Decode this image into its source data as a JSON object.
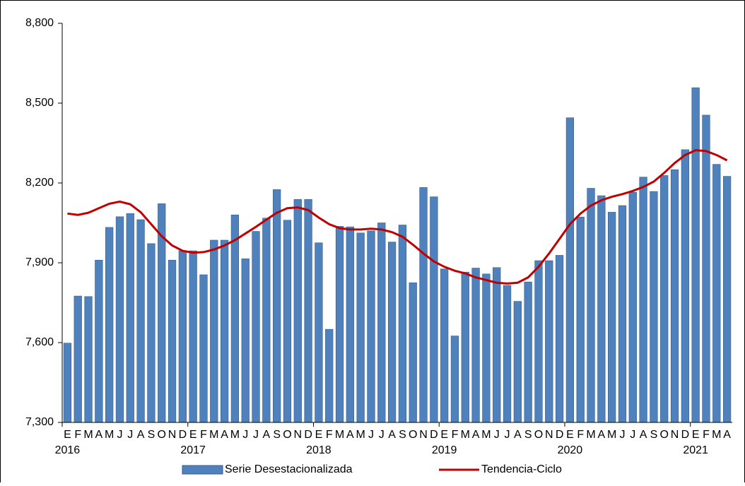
{
  "chart_data": {
    "type": "bar-line",
    "categories": [
      "E",
      "F",
      "M",
      "A",
      "M",
      "J",
      "J",
      "A",
      "S",
      "O",
      "N",
      "D",
      "E",
      "F",
      "M",
      "A",
      "M",
      "J",
      "J",
      "A",
      "S",
      "O",
      "N",
      "D",
      "E",
      "F",
      "M",
      "A",
      "M",
      "J",
      "J",
      "A",
      "S",
      "O",
      "N",
      "D",
      "E",
      "F",
      "M",
      "A",
      "M",
      "J",
      "J",
      "A",
      "S",
      "O",
      "N",
      "D",
      "E",
      "F",
      "M",
      "A",
      "M",
      "J",
      "J",
      "A",
      "S",
      "O",
      "N",
      "D",
      "E",
      "F",
      "M",
      "A"
    ],
    "years": [
      "2016",
      "2017",
      "2018",
      "2019",
      "2020",
      "2021"
    ],
    "series": [
      {
        "name": "Serie Desestacionalizada",
        "type": "bar",
        "color": "#4f81bd",
        "values": [
          7598,
          7775,
          7773,
          7910,
          8033,
          8073,
          8085,
          8062,
          7972,
          8122,
          7910,
          7945,
          7945,
          7855,
          7985,
          7985,
          8080,
          7915,
          8018,
          8068,
          8175,
          8060,
          8138,
          8138,
          7975,
          7650,
          8037,
          8035,
          8012,
          8020,
          8050,
          7978,
          8042,
          7825,
          8183,
          8148,
          7877,
          7625,
          7865,
          7880,
          7858,
          7882,
          7815,
          7755,
          7828,
          7908,
          7908,
          7928,
          8445,
          8072,
          8180,
          8152,
          8090,
          8115,
          8165,
          8222,
          8168,
          8228,
          8250,
          8325,
          8558,
          8455,
          8270,
          8225
        ]
      },
      {
        "name": "Tendencia-Ciclo",
        "type": "line",
        "color": "#c00000",
        "values": [
          8085,
          8080,
          8088,
          8105,
          8122,
          8130,
          8120,
          8090,
          8045,
          8000,
          7965,
          7945,
          7938,
          7940,
          7950,
          7965,
          7985,
          8010,
          8035,
          8062,
          8088,
          8105,
          8108,
          8098,
          8070,
          8045,
          8030,
          8025,
          8025,
          8028,
          8025,
          8015,
          7998,
          7968,
          7935,
          7905,
          7885,
          7870,
          7860,
          7845,
          7835,
          7825,
          7822,
          7825,
          7845,
          7885,
          7935,
          7990,
          8045,
          8085,
          8115,
          8135,
          8148,
          8158,
          8170,
          8185,
          8205,
          8238,
          8275,
          8305,
          8323,
          8320,
          8305,
          8285
        ]
      }
    ],
    "ylim": [
      7300,
      8800
    ],
    "yticks": [
      {
        "value": 7300,
        "label": "7,300"
      },
      {
        "value": 7600,
        "label": "7,600"
      },
      {
        "value": 7900,
        "label": "7,900"
      },
      {
        "value": 8200,
        "label": "8,200"
      },
      {
        "value": 8500,
        "label": "8,500"
      },
      {
        "value": 8800,
        "label": "8,800"
      }
    ],
    "legend": "bottom"
  }
}
